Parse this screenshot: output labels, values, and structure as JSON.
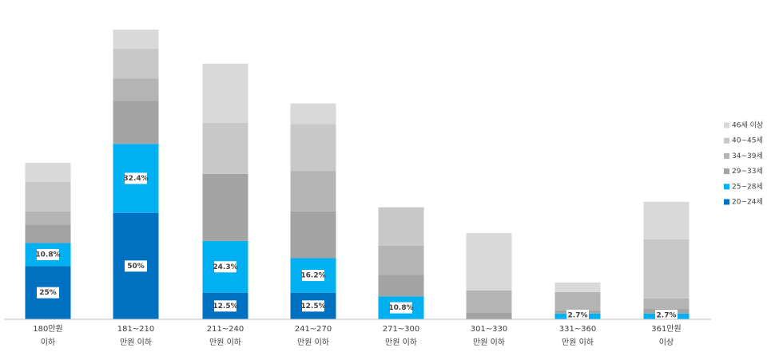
{
  "chart_data": {
    "type": "stacked-bar",
    "categories": [
      "180만원\n이하",
      "181~210\n만원 이하",
      "211~240\n만원 이하",
      "241~270\n만원 이하",
      "271~300\n만원 이하",
      "301~330\n만원 이하",
      "331~360\n만원 이하",
      "361만원\n이상"
    ],
    "series": [
      {
        "name": "20~24세",
        "color": "#0070c0",
        "values": [
          25,
          50,
          12.5,
          12.5,
          0,
          0,
          0,
          0
        ],
        "value_labels": [
          "25%",
          "50%",
          "12.5%",
          "12.5%",
          null,
          null,
          null,
          null
        ]
      },
      {
        "name": "25~28세",
        "color": "#00b0f0",
        "values": [
          10.8,
          32.4,
          24.3,
          16.2,
          10.8,
          0,
          2.7,
          2.7
        ],
        "value_labels": [
          "10.8%",
          "32.4%",
          "24.3%",
          "16.2%",
          "10.8%",
          null,
          "2.7%",
          "2.7%"
        ]
      },
      {
        "name": "29~33세",
        "color": "#a3a3a3",
        "values": [
          8.6,
          20.3,
          31.5,
          22,
          10,
          3,
          1.5,
          2.2
        ]
      },
      {
        "name": "34~39세",
        "color": "#b4b4b4",
        "values": [
          6.3,
          10.5,
          0,
          19,
          13.8,
          10.5,
          8.6,
          4.9
        ]
      },
      {
        "name": "40~45세",
        "color": "#c8c8c8",
        "values": [
          13.8,
          13.9,
          24,
          22,
          18,
          0,
          0,
          27.8
        ]
      },
      {
        "name": "46세 이상",
        "color": "#d9d9d9",
        "values": [
          9,
          9,
          27.8,
          9.7,
          0,
          27,
          4.5,
          17.6
        ]
      }
    ],
    "ylim": [
      0,
      150
    ],
    "legend": "right"
  }
}
